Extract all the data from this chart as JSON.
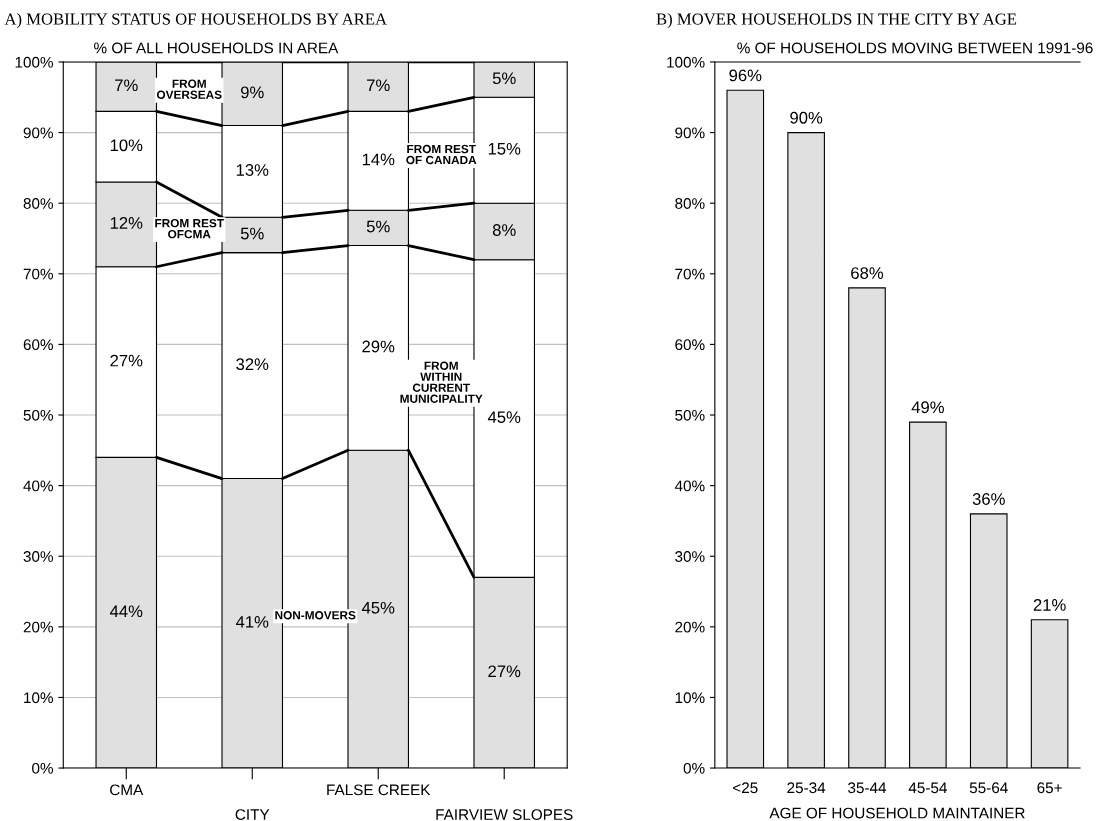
{
  "chart_data": [
    {
      "type": "bar",
      "stacked": true,
      "title": "A) MOBILITY STATUS OF HOUSEHOLDS BY AREA",
      "ylabel": "% OF ALL HOUSEHOLDS IN AREA",
      "categories": [
        "CMA",
        "CITY",
        "FALSE CREEK",
        "FAIRVIEW SLOPES"
      ],
      "series": [
        {
          "name": "NON-MOVERS",
          "color": "#e0e0e0",
          "values": [
            44,
            41,
            45,
            27
          ],
          "value_labels": [
            "44%",
            "41%",
            "45%",
            "27%"
          ]
        },
        {
          "name": "FROM WITHIN CURRENT MUNICIPALITY",
          "color": "#ffffff",
          "values": [
            27,
            32,
            29,
            45
          ],
          "value_labels": [
            "27%",
            "32%",
            "29%",
            "45%"
          ]
        },
        {
          "name": "FROM REST OFCMA",
          "color": "#e0e0e0",
          "values": [
            12,
            5,
            5,
            8
          ],
          "value_labels": [
            "12%",
            "5%",
            "5%",
            "8%"
          ]
        },
        {
          "name": "FROM REST OF CANADA",
          "color": "#ffffff",
          "values": [
            10,
            13,
            14,
            15
          ],
          "value_labels": [
            "10%",
            "13%",
            "14%",
            "15%"
          ]
        },
        {
          "name": "FROM OVERSEAS",
          "color": "#e0e0e0",
          "values": [
            7,
            9,
            7,
            5
          ],
          "value_labels": [
            "7%",
            "9%",
            "7%",
            "5%"
          ]
        }
      ],
      "ylim": [
        0,
        100
      ],
      "yticks": [
        {
          "value": 0,
          "label": "0%"
        },
        {
          "value": 10,
          "label": "10%"
        },
        {
          "value": 20,
          "label": "20%"
        },
        {
          "value": 30,
          "label": "30%"
        },
        {
          "value": 40,
          "label": "40%"
        },
        {
          "value": 50,
          "label": "50%"
        },
        {
          "value": 60,
          "label": "60%"
        },
        {
          "value": 70,
          "label": "70%"
        },
        {
          "value": 80,
          "label": "80%"
        },
        {
          "value": 90,
          "label": "90%"
        },
        {
          "value": 100,
          "label": "100%"
        }
      ],
      "grid": "y"
    },
    {
      "type": "bar",
      "title": "B) MOVER HOUSEHOLDS IN THE CITY BY AGE",
      "ylabel": "% OF HOUSEHOLDS MOVING BETWEEN 1991-96",
      "xlabel": "AGE OF HOUSEHOLD MAINTAINER",
      "categories": [
        "<25",
        "25-34",
        "35-44",
        "45-54",
        "55-64",
        "65+"
      ],
      "series": [
        {
          "color": "#e0e0e0",
          "values": [
            96,
            90,
            68,
            49,
            36,
            21
          ],
          "value_labels": [
            "96%",
            "90%",
            "68%",
            "49%",
            "36%",
            "21%"
          ]
        }
      ],
      "ylim": [
        0,
        100
      ],
      "yticks": [
        {
          "value": 0,
          "label": "0%"
        },
        {
          "value": 10,
          "label": "10%"
        },
        {
          "value": 20,
          "label": "20%"
        },
        {
          "value": 30,
          "label": "30%"
        },
        {
          "value": 40,
          "label": "40%"
        },
        {
          "value": 50,
          "label": "50%"
        },
        {
          "value": 60,
          "label": "60%"
        },
        {
          "value": 70,
          "label": "70%"
        },
        {
          "value": 80,
          "label": "80%"
        },
        {
          "value": 90,
          "label": "90%"
        },
        {
          "value": 100,
          "label": "100%"
        }
      ],
      "grid": false
    }
  ]
}
